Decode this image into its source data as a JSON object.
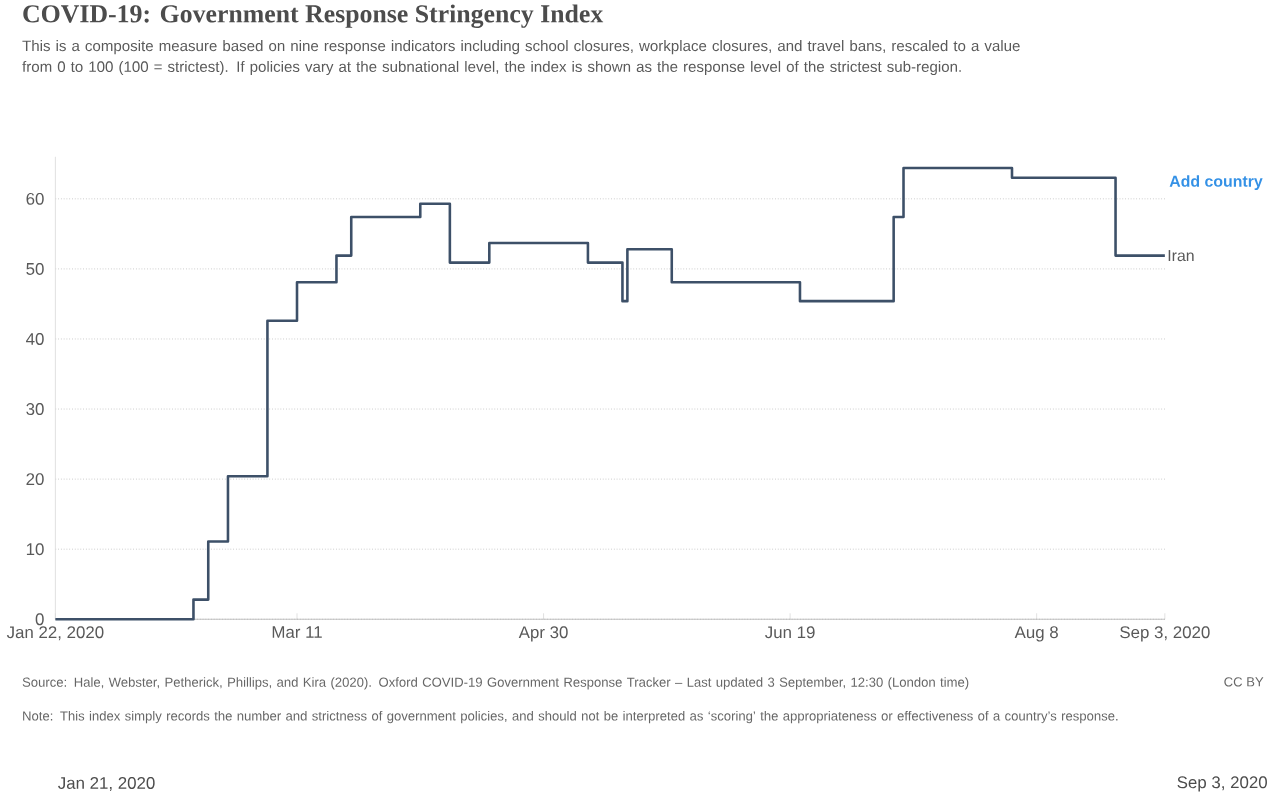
{
  "chart_data": {
    "type": "step",
    "title": "COVID-19: Government Response Stringency Index",
    "subtitle": "This is a composite measure based on nine response indicators including school closures, workplace closures, and travel bans, rescaled to a value from 0 to 100 (100 = strictest). If policies vary at the subnational level, the index is shown as the response level of the strictest sub-region.",
    "x": [
      "2020-01-22",
      "2020-02-19",
      "2020-02-22",
      "2020-02-26",
      "2020-03-05",
      "2020-03-11",
      "2020-03-19",
      "2020-03-22",
      "2020-04-05",
      "2020-04-11",
      "2020-04-19",
      "2020-05-09",
      "2020-05-16",
      "2020-05-17",
      "2020-05-26",
      "2020-06-21",
      "2020-07-10",
      "2020-07-12",
      "2020-08-03",
      "2020-08-24",
      "2020-09-03"
    ],
    "series": [
      {
        "name": "Iran",
        "color": "#3d5068",
        "values": [
          0,
          2.8,
          11.1,
          20.4,
          42.6,
          48.1,
          51.9,
          57.4,
          59.3,
          50.9,
          53.7,
          50.9,
          45.4,
          52.8,
          48.1,
          45.4,
          57.4,
          64.4,
          63.0,
          51.9,
          51.9
        ]
      }
    ],
    "xlim": [
      "2020-01-22",
      "2020-09-03"
    ],
    "xticks": [
      {
        "value": "2020-01-22",
        "label": "Jan 22, 2020"
      },
      {
        "value": "2020-03-11",
        "label": "Mar 11"
      },
      {
        "value": "2020-04-30",
        "label": "Apr 30"
      },
      {
        "value": "2020-06-19",
        "label": "Jun 19"
      },
      {
        "value": "2020-08-08",
        "label": "Aug 8"
      },
      {
        "value": "2020-09-03",
        "label": "Sep 3, 2020"
      }
    ],
    "ylim": [
      0,
      66
    ],
    "yticks": [
      0,
      10,
      20,
      30,
      40,
      50,
      60
    ],
    "grid": "y",
    "legend": false,
    "annotations": [
      "Source: Hale, Webster, Petherick, Phillips, and Kira (2020). Oxford COVID-19 Government Response Tracker – Last updated 3 September, 12:30 (London time)",
      "Note: This index simply records the number and strictness of government policies, and should not be interpreted as ‘scoring’ the appropriateness or effectiveness of a country’s response.",
      "CC BY",
      "Add country",
      "Jan 21, 2020",
      "Sep 3, 2020"
    ]
  }
}
